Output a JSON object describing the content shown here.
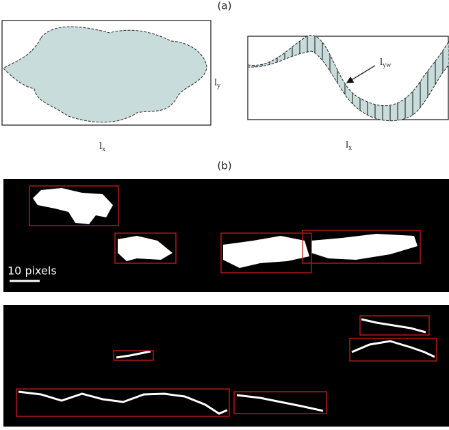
{
  "panel_a": {
    "label": "(a)",
    "left": {
      "height_label": {
        "main": "l",
        "sub": "y"
      },
      "width_label": {
        "main": "l",
        "sub": "x"
      }
    },
    "right": {
      "width_label": {
        "main": "l",
        "sub": "yw"
      },
      "length_label": {
        "main": "l",
        "sub": "x"
      }
    }
  },
  "panel_b": {
    "label": "(b)",
    "scale_bar": "10 pixels"
  }
}
